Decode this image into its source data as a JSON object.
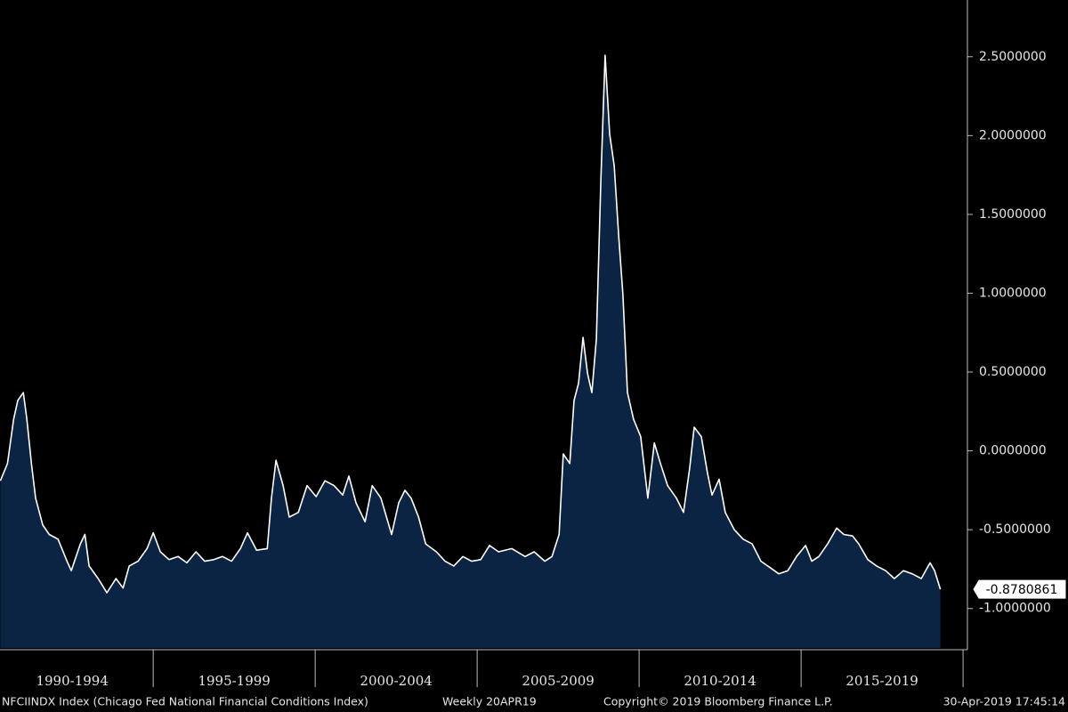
{
  "chart_data": {
    "type": "area",
    "color": "#ffffff",
    "fill": "#0c2443",
    "xlim": [
      1990.27,
      2020.08
    ],
    "ylim": [
      -1.25,
      2.86
    ],
    "xticks": [
      1995,
      2000,
      2005,
      2010,
      2015,
      2020
    ],
    "xtick_labels": [
      {
        "value": 1992.5,
        "label": "1990-1994"
      },
      {
        "value": 1997.5,
        "label": "1995-1999"
      },
      {
        "value": 2002.5,
        "label": "2000-2004"
      },
      {
        "value": 2007.5,
        "label": "2005-2009"
      },
      {
        "value": 2012.5,
        "label": "2010-2014"
      },
      {
        "value": 2017.5,
        "label": "2015-2019"
      }
    ],
    "yticks": [
      {
        "value": -1,
        "label": "-1.0000000"
      },
      {
        "value": -0.5,
        "label": "-0.5000000"
      },
      {
        "value": 0,
        "label": "0.0000000"
      },
      {
        "value": 0.5,
        "label": "0.5000000"
      },
      {
        "value": 1,
        "label": "1.0000000"
      },
      {
        "value": 1.5,
        "label": "1.5000000"
      },
      {
        "value": 2,
        "label": "2.0000000"
      },
      {
        "value": 2.5,
        "label": "2.5000000"
      }
    ],
    "x": [
      1990.28,
      1990.5,
      1990.69,
      1990.82,
      1990.99,
      1991.1,
      1991.24,
      1991.37,
      1991.59,
      1991.79,
      1992.06,
      1992.34,
      1992.47,
      1992.75,
      1992.89,
      1993.02,
      1993.3,
      1993.57,
      1993.85,
      1994.07,
      1994.26,
      1994.53,
      1994.81,
      1995.0,
      1995.22,
      1995.49,
      1995.77,
      1996.04,
      1996.32,
      1996.59,
      1996.87,
      1997.14,
      1997.42,
      1997.69,
      1997.91,
      1998.19,
      1998.52,
      1998.65,
      1998.79,
      1999.01,
      1999.2,
      1999.48,
      1999.75,
      2000.03,
      2000.3,
      2000.58,
      2000.85,
      2001.04,
      2001.26,
      2001.54,
      2001.76,
      2002.03,
      2002.36,
      2002.58,
      2002.77,
      2002.96,
      2003.19,
      2003.41,
      2003.74,
      2004.01,
      2004.28,
      2004.56,
      2004.83,
      2005.11,
      2005.38,
      2005.66,
      2006.07,
      2006.48,
      2006.76,
      2007.09,
      2007.31,
      2007.53,
      2007.66,
      2007.86,
      2007.99,
      2008.13,
      2008.27,
      2008.41,
      2008.54,
      2008.68,
      2008.82,
      2008.95,
      2009.09,
      2009.23,
      2009.37,
      2009.5,
      2009.64,
      2009.83,
      2010.05,
      2010.27,
      2010.47,
      2010.66,
      2010.88,
      2011.15,
      2011.37,
      2011.56,
      2011.7,
      2011.92,
      2012.11,
      2012.25,
      2012.47,
      2012.66,
      2012.94,
      2013.21,
      2013.49,
      2013.76,
      2014.04,
      2014.31,
      2014.59,
      2014.86,
      2015.14,
      2015.33,
      2015.55,
      2015.82,
      2016.1,
      2016.32,
      2016.59,
      2016.78,
      2017.06,
      2017.33,
      2017.61,
      2017.88,
      2018.16,
      2018.43,
      2018.71,
      2018.98,
      2019.12,
      2019.3
    ],
    "values": [
      -0.19,
      -0.08,
      0.2,
      0.32,
      0.37,
      0.2,
      -0.08,
      -0.3,
      -0.47,
      -0.53,
      -0.56,
      -0.7,
      -0.76,
      -0.59,
      -0.53,
      -0.73,
      -0.81,
      -0.9,
      -0.81,
      -0.87,
      -0.73,
      -0.7,
      -0.62,
      -0.52,
      -0.64,
      -0.69,
      -0.67,
      -0.71,
      -0.64,
      -0.7,
      -0.69,
      -0.67,
      -0.7,
      -0.62,
      -0.52,
      -0.63,
      -0.62,
      -0.3,
      -0.06,
      -0.22,
      -0.42,
      -0.39,
      -0.22,
      -0.29,
      -0.19,
      -0.22,
      -0.28,
      -0.16,
      -0.33,
      -0.45,
      -0.22,
      -0.3,
      -0.53,
      -0.33,
      -0.25,
      -0.3,
      -0.42,
      -0.59,
      -0.64,
      -0.7,
      -0.73,
      -0.67,
      -0.7,
      -0.69,
      -0.6,
      -0.64,
      -0.62,
      -0.67,
      -0.64,
      -0.7,
      -0.67,
      -0.53,
      -0.02,
      -0.08,
      0.32,
      0.43,
      0.72,
      0.49,
      0.37,
      0.71,
      1.73,
      2.51,
      2.01,
      1.81,
      1.36,
      0.99,
      0.37,
      0.2,
      0.09,
      -0.3,
      0.05,
      -0.08,
      -0.22,
      -0.3,
      -0.39,
      -0.11,
      0.15,
      0.09,
      -0.14,
      -0.28,
      -0.18,
      -0.39,
      -0.5,
      -0.56,
      -0.59,
      -0.7,
      -0.74,
      -0.78,
      -0.76,
      -0.67,
      -0.6,
      -0.7,
      -0.67,
      -0.59,
      -0.49,
      -0.53,
      -0.54,
      -0.59,
      -0.69,
      -0.73,
      -0.76,
      -0.81,
      -0.76,
      -0.78,
      -0.81,
      -0.71,
      -0.76,
      -0.8780861
    ],
    "source": "NFCIINDX Index (Chicago Fed National Financial Conditions Index)",
    "frequency": "Weekly 20APR19",
    "copyright": "Copyright© 2019 Bloomberg Finance L.P.",
    "timestamp": "30-Apr-2019 17:45:14"
  }
}
